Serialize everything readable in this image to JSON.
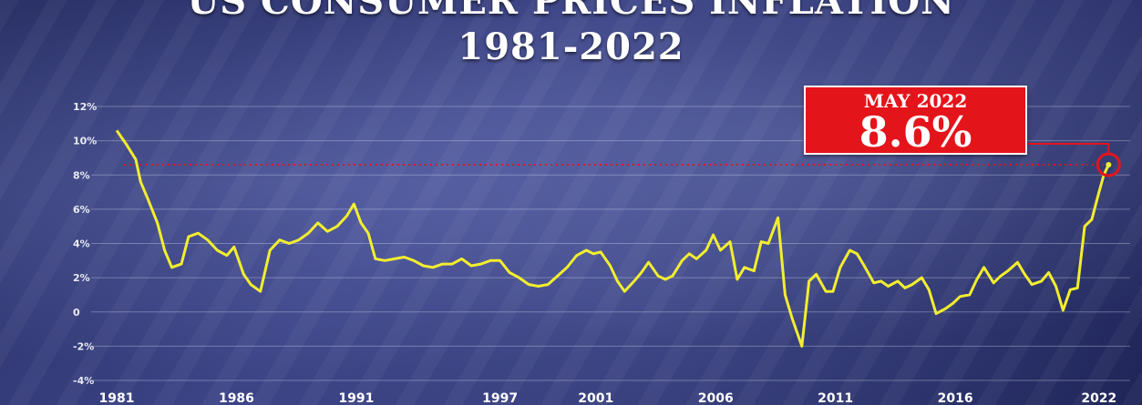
{
  "chart_data": {
    "type": "line",
    "title": "US CONSUMER PRICES INFLATION",
    "subtitle": "1981-2022",
    "ylim": [
      -4,
      12
    ],
    "yticks": [
      {
        "value": 12,
        "label": "12%"
      },
      {
        "value": 10,
        "label": "10%"
      },
      {
        "value": 8,
        "label": "8%"
      },
      {
        "value": 6,
        "label": "6%"
      },
      {
        "value": 4,
        "label": "4%"
      },
      {
        "value": 2,
        "label": "2%"
      },
      {
        "value": 0,
        "label": "0"
      },
      {
        "value": -2,
        "label": "-2%"
      },
      {
        "value": -4,
        "label": "-4%"
      }
    ],
    "xlim": [
      1981,
      2023.3
    ],
    "xticks": [
      {
        "value": 1981,
        "label": "1981"
      },
      {
        "value": 1986,
        "label": "1986"
      },
      {
        "value": 1991,
        "label": "1991"
      },
      {
        "value": 1997,
        "label": "1997"
      },
      {
        "value": 2001,
        "label": "2001"
      },
      {
        "value": 2006,
        "label": "2006"
      },
      {
        "value": 2011,
        "label": "2011"
      },
      {
        "value": 2016,
        "label": "2016"
      },
      {
        "value": 2022,
        "label": "2022"
      }
    ],
    "grid": true,
    "reference_line": {
      "value": 8.6,
      "style": "dotted",
      "color": "#e4141b"
    },
    "series": [
      {
        "color": "#f2ee2e",
        "points": [
          [
            1981.0,
            10.6
          ],
          [
            1981.4,
            9.8
          ],
          [
            1981.8,
            8.9
          ],
          [
            1982.0,
            7.6
          ],
          [
            1982.3,
            6.6
          ],
          [
            1982.7,
            5.2
          ],
          [
            1983.0,
            3.6
          ],
          [
            1983.3,
            2.6
          ],
          [
            1983.7,
            2.8
          ],
          [
            1984.0,
            4.4
          ],
          [
            1984.4,
            4.6
          ],
          [
            1984.8,
            4.2
          ],
          [
            1985.2,
            3.6
          ],
          [
            1985.6,
            3.3
          ],
          [
            1985.9,
            3.8
          ],
          [
            1986.3,
            2.2
          ],
          [
            1986.6,
            1.6
          ],
          [
            1987.0,
            1.2
          ],
          [
            1987.4,
            3.6
          ],
          [
            1987.8,
            4.2
          ],
          [
            1988.2,
            4.0
          ],
          [
            1988.6,
            4.2
          ],
          [
            1989.0,
            4.6
          ],
          [
            1989.4,
            5.2
          ],
          [
            1989.8,
            4.7
          ],
          [
            1990.2,
            5.0
          ],
          [
            1990.6,
            5.6
          ],
          [
            1990.9,
            6.3
          ],
          [
            1991.2,
            5.2
          ],
          [
            1991.5,
            4.6
          ],
          [
            1991.8,
            3.1
          ],
          [
            1992.2,
            3.0
          ],
          [
            1992.6,
            3.1
          ],
          [
            1993.0,
            3.2
          ],
          [
            1993.4,
            3.0
          ],
          [
            1993.8,
            2.7
          ],
          [
            1994.2,
            2.6
          ],
          [
            1994.6,
            2.8
          ],
          [
            1995.0,
            2.8
          ],
          [
            1995.4,
            3.1
          ],
          [
            1995.8,
            2.7
          ],
          [
            1996.2,
            2.8
          ],
          [
            1996.6,
            3.0
          ],
          [
            1997.0,
            3.0
          ],
          [
            1997.4,
            2.3
          ],
          [
            1997.8,
            2.0
          ],
          [
            1998.2,
            1.6
          ],
          [
            1998.6,
            1.5
          ],
          [
            1999.0,
            1.6
          ],
          [
            1999.4,
            2.1
          ],
          [
            1999.8,
            2.6
          ],
          [
            2000.2,
            3.3
          ],
          [
            2000.6,
            3.6
          ],
          [
            2000.9,
            3.4
          ],
          [
            2001.2,
            3.5
          ],
          [
            2001.6,
            2.7
          ],
          [
            2001.9,
            1.8
          ],
          [
            2002.2,
            1.2
          ],
          [
            2002.6,
            1.8
          ],
          [
            2002.9,
            2.3
          ],
          [
            2003.2,
            2.9
          ],
          [
            2003.6,
            2.1
          ],
          [
            2003.9,
            1.9
          ],
          [
            2004.2,
            2.1
          ],
          [
            2004.6,
            3.0
          ],
          [
            2004.9,
            3.4
          ],
          [
            2005.2,
            3.1
          ],
          [
            2005.6,
            3.6
          ],
          [
            2005.9,
            4.5
          ],
          [
            2006.2,
            3.6
          ],
          [
            2006.6,
            4.1
          ],
          [
            2006.9,
            1.9
          ],
          [
            2007.2,
            2.6
          ],
          [
            2007.6,
            2.4
          ],
          [
            2007.9,
            4.1
          ],
          [
            2008.2,
            4.0
          ],
          [
            2008.6,
            5.5
          ],
          [
            2008.9,
            1.0
          ],
          [
            2009.2,
            -0.4
          ],
          [
            2009.6,
            -2.0
          ],
          [
            2009.9,
            1.8
          ],
          [
            2010.2,
            2.2
          ],
          [
            2010.6,
            1.2
          ],
          [
            2010.9,
            1.2
          ],
          [
            2011.2,
            2.6
          ],
          [
            2011.6,
            3.6
          ],
          [
            2011.9,
            3.4
          ],
          [
            2012.2,
            2.7
          ],
          [
            2012.6,
            1.7
          ],
          [
            2012.9,
            1.8
          ],
          [
            2013.2,
            1.5
          ],
          [
            2013.6,
            1.8
          ],
          [
            2013.9,
            1.4
          ],
          [
            2014.2,
            1.6
          ],
          [
            2014.6,
            2.0
          ],
          [
            2014.9,
            1.3
          ],
          [
            2015.2,
            -0.1
          ],
          [
            2015.6,
            0.2
          ],
          [
            2015.9,
            0.5
          ],
          [
            2016.2,
            0.9
          ],
          [
            2016.6,
            1.0
          ],
          [
            2016.9,
            1.9
          ],
          [
            2017.2,
            2.6
          ],
          [
            2017.6,
            1.7
          ],
          [
            2017.9,
            2.1
          ],
          [
            2018.2,
            2.4
          ],
          [
            2018.6,
            2.9
          ],
          [
            2018.9,
            2.2
          ],
          [
            2019.2,
            1.6
          ],
          [
            2019.6,
            1.8
          ],
          [
            2019.9,
            2.3
          ],
          [
            2020.2,
            1.5
          ],
          [
            2020.5,
            0.1
          ],
          [
            2020.8,
            1.3
          ],
          [
            2021.1,
            1.4
          ],
          [
            2021.4,
            5.0
          ],
          [
            2021.7,
            5.4
          ],
          [
            2022.0,
            7.0
          ],
          [
            2022.2,
            8.0
          ],
          [
            2022.4,
            8.6
          ]
        ]
      }
    ],
    "annotation": {
      "label": "MAY 2022",
      "value": "8.6%",
      "point": [
        2022.4,
        8.6
      ],
      "box_color": "#e4141b",
      "marker_icon": "circle-highlight-icon"
    }
  }
}
